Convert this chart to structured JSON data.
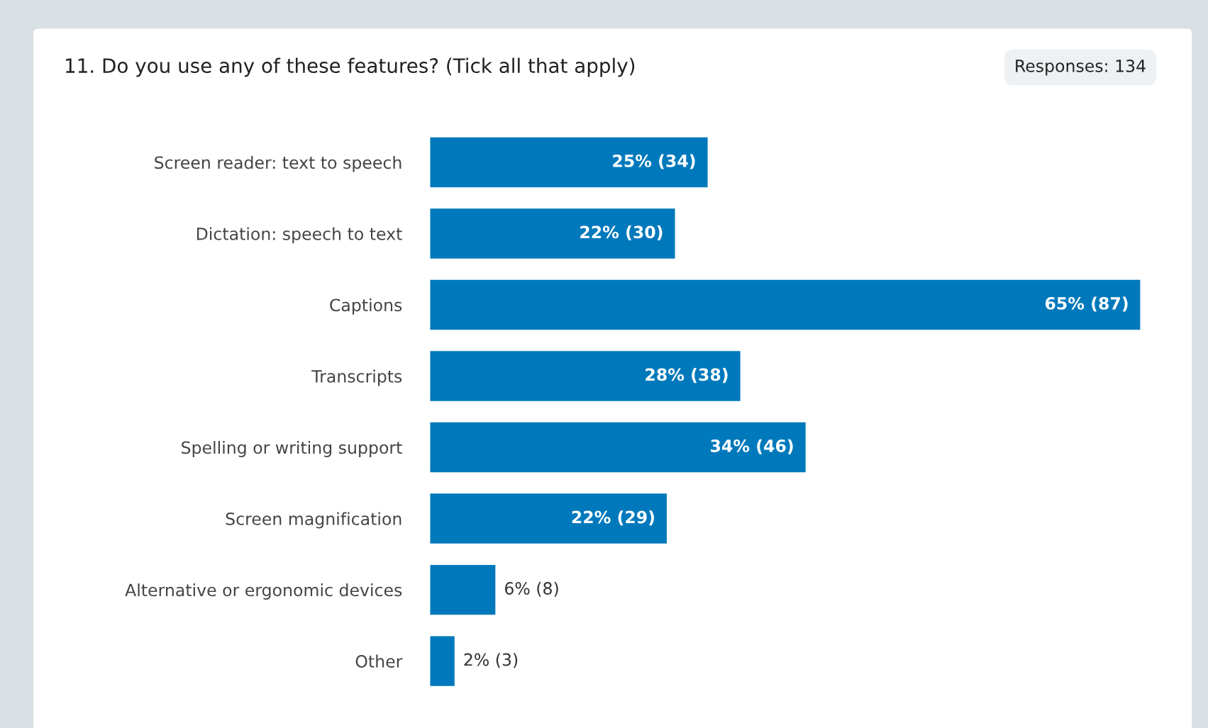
{
  "chart_data": {
    "type": "bar",
    "orientation": "horizontal",
    "title": "11. Do you use any of these features? (Tick all that apply)",
    "annotations": [
      "Responses: 134"
    ],
    "categories": [
      "Screen reader: text to speech",
      "Dictation: speech to text",
      "Captions",
      "Transcripts",
      "Spelling or writing support",
      "Screen magnification",
      "Alternative or ergonomic devices",
      "Other"
    ],
    "values": [
      34,
      30,
      87,
      38,
      46,
      29,
      8,
      3
    ],
    "value_labels": [
      "25% (34)",
      "22% (30)",
      "65% (87)",
      "28% (38)",
      "34% (46)",
      "22% (29)",
      "6% (8)",
      "2% (3)"
    ],
    "color": "#0079bc",
    "grid": false,
    "legend": false,
    "tick_labels": "y"
  }
}
